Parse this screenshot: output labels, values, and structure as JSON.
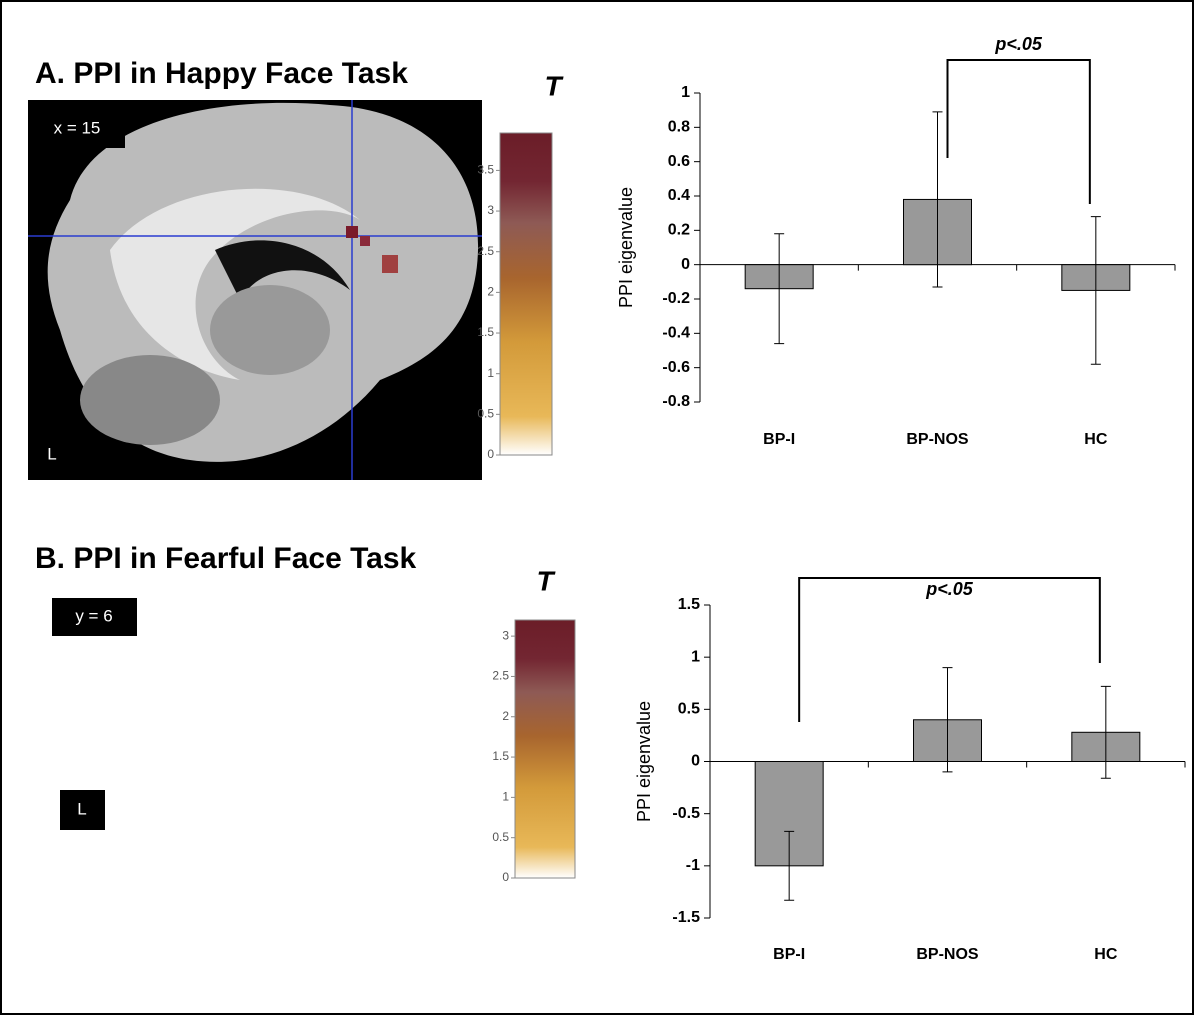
{
  "panels": [
    {
      "title": "A. PPI in Happy Face Task",
      "image_labels": [
        "x = 15",
        "L"
      ]
    },
    {
      "title": "B. PPI in Fearful Face Task",
      "image_labels": [
        "y = 6",
        "L"
      ]
    }
  ],
  "chart_data": [
    {
      "type": "colorbar",
      "title": "T",
      "ylim": [
        0,
        3.96
      ],
      "yticks": [
        0,
        0.5,
        1,
        1.5,
        2,
        2.5,
        3,
        3.5
      ]
    },
    {
      "type": "bar",
      "ylabel": "PPI eigenvalue",
      "annotation": "p<.05",
      "categories": [
        "BP-I",
        "BP-NOS",
        "HC"
      ],
      "values": [
        -0.14,
        0.38,
        -0.15
      ],
      "errors": [
        0.32,
        0.51,
        0.43
      ],
      "color": "#999999",
      "ylim": [
        -0.8,
        1
      ],
      "yticks": [
        -0.8,
        -0.6,
        -0.4,
        -0.2,
        0,
        0.2,
        0.4,
        0.6,
        0.8,
        1
      ]
    },
    {
      "type": "colorbar",
      "title": "T",
      "ylim": [
        0,
        3.2
      ],
      "yticks": [
        0,
        0.5,
        1,
        1.5,
        2,
        2.5,
        3
      ]
    },
    {
      "type": "bar",
      "ylabel": "PPI eigenvalue",
      "annotation": "p<.05",
      "categories": [
        "BP-I",
        "BP-NOS",
        "HC"
      ],
      "values": [
        -1.0,
        0.4,
        0.28
      ],
      "errors": [
        0.33,
        0.5,
        0.44
      ],
      "color": "#999999",
      "ylim": [
        -1.5,
        1.5
      ],
      "yticks": [
        -1.5,
        -1,
        -0.5,
        0,
        0.5,
        1,
        1.5
      ]
    }
  ]
}
